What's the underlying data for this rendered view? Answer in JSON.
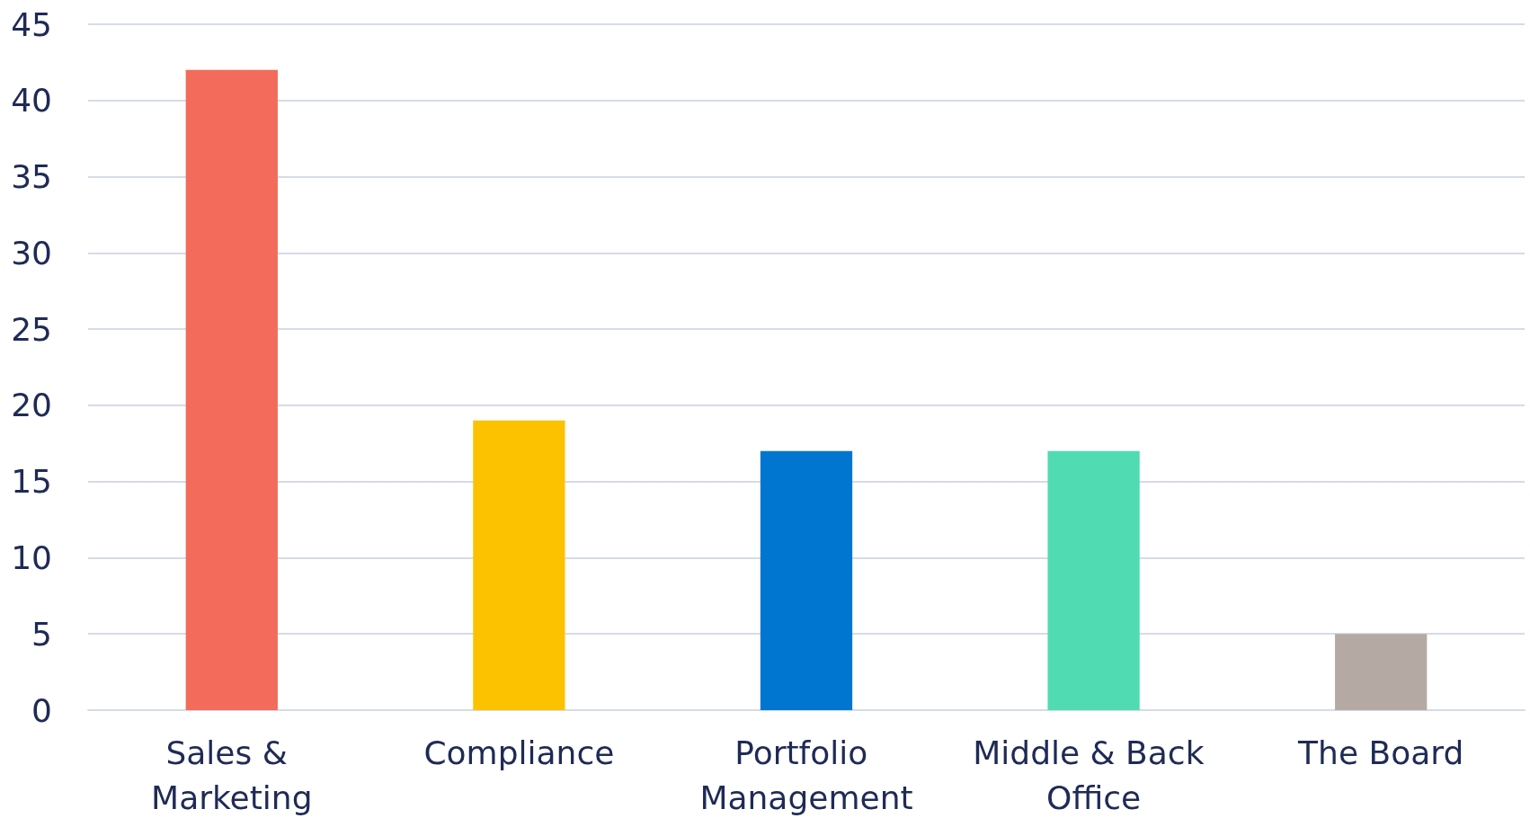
{
  "chart_data": {
    "type": "bar",
    "categories": [
      "Sales & Marketing",
      "Compliance",
      "Portfolio Management",
      "Middle & Back Office",
      "The Board"
    ],
    "values": [
      42,
      19,
      17,
      17,
      5
    ],
    "colors": [
      "#f36b5a",
      "#fcc200",
      "#0076d1",
      "#50dbb2",
      "#b5aaa3"
    ],
    "ylim": [
      0,
      45
    ],
    "yticks": [
      0,
      5,
      10,
      15,
      20,
      25,
      30,
      35,
      40,
      45
    ],
    "grid": "y"
  }
}
